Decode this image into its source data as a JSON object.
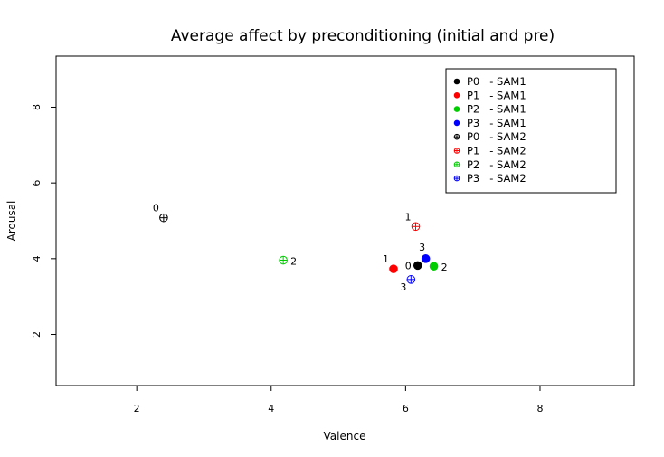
{
  "chart_data": {
    "type": "scatter",
    "title": "Average affect by preconditioning (initial and pre)",
    "xlabel": "Valence",
    "ylabel": "Arousal",
    "xlim": [
      0.8,
      9.4
    ],
    "ylim": [
      0.65,
      9.35
    ],
    "xticks": [
      2,
      4,
      6,
      8
    ],
    "yticks": [
      2,
      4,
      6,
      8
    ],
    "legend_position": "top-right",
    "series": [
      {
        "name": "P0   - SAM1",
        "color": "#000000",
        "marker": "filled",
        "points": [
          {
            "x": 6.18,
            "y": 3.82,
            "label": "0",
            "label_side": "left"
          }
        ]
      },
      {
        "name": "P1   - SAM1",
        "color": "#ff0000",
        "marker": "filled",
        "points": [
          {
            "x": 5.82,
            "y": 3.73,
            "label": "1",
            "label_side": "above-left"
          }
        ]
      },
      {
        "name": "P2   - SAM1",
        "color": "#00cd00",
        "marker": "filled",
        "points": [
          {
            "x": 6.42,
            "y": 3.8,
            "label": "2",
            "label_side": "right"
          }
        ]
      },
      {
        "name": "P3   - SAM1",
        "color": "#0000ff",
        "marker": "filled",
        "points": [
          {
            "x": 6.3,
            "y": 4.0,
            "label": "3",
            "label_side": "above"
          }
        ]
      },
      {
        "name": "P0   - SAM2",
        "color": "#000000",
        "marker": "open",
        "points": [
          {
            "x": 2.4,
            "y": 5.08,
            "label": "0",
            "label_side": "above-left"
          }
        ]
      },
      {
        "name": "P1   - SAM2",
        "color": "#ff0000",
        "marker": "open",
        "points": [
          {
            "x": 6.15,
            "y": 4.85,
            "label": "1",
            "label_side": "above-left"
          }
        ]
      },
      {
        "name": "P2   - SAM2",
        "color": "#00cd00",
        "marker": "open",
        "points": [
          {
            "x": 4.18,
            "y": 3.96,
            "label": "2",
            "label_side": "right"
          }
        ]
      },
      {
        "name": "P3   - SAM2",
        "color": "#0000ff",
        "marker": "open",
        "points": [
          {
            "x": 6.08,
            "y": 3.45,
            "label": "3",
            "label_side": "below-left"
          }
        ]
      }
    ]
  }
}
